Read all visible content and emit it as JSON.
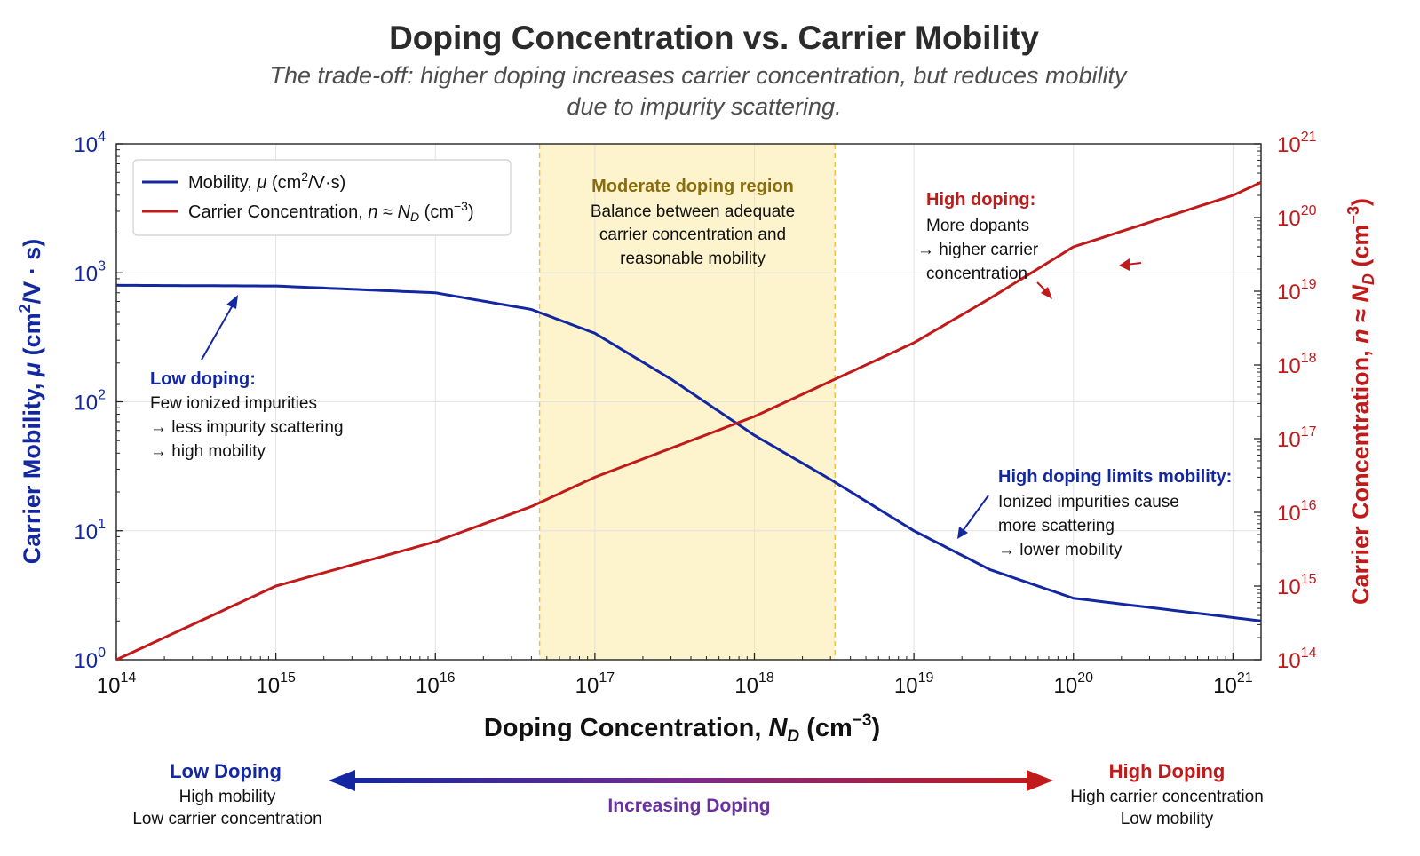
{
  "chart_data": {
    "type": "line",
    "title": "Doping Concentration vs. Carrier Mobility",
    "subtitle": "The trade-off: higher doping increases carrier concentration, but reduces mobility due to impurity scattering.",
    "xlabel": "Doping Concentration, N_D (cm^-3)",
    "ylabel_left": "Carrier Mobility, μ (cm²/V·s)",
    "ylabel_right": "Carrier Concentration, n ≈ N_D (cm^-3)",
    "x_scale": "log",
    "y_scale_left": "log",
    "y_scale_right": "log",
    "xlim": [
      100000000000000.0,
      1.5e+21
    ],
    "ylim_left": [
      1,
      10000
    ],
    "ylim_right": [
      100000000000000.0,
      1e+21
    ],
    "x_ticks": [
      "10^14",
      "10^15",
      "10^16",
      "10^17",
      "10^18",
      "10^19",
      "10^20",
      "10^21"
    ],
    "y_ticks_left": [
      "10^0",
      "10^1",
      "10^2",
      "10^3",
      "10^4"
    ],
    "y_ticks_right": [
      "10^14",
      "10^15",
      "10^16",
      "10^17",
      "10^18",
      "10^19",
      "10^20",
      "10^21"
    ],
    "grid": true,
    "legend_position": "top-left",
    "series": [
      {
        "name": "Mobility, μ (cm²/V·s)",
        "axis": "left",
        "color": "#1328a0",
        "x": [
          100000000000000.0,
          1000000000000000.0,
          1e+16,
          4e+16,
          1e+17,
          3e+17,
          1e+18,
          3e+18,
          1e+19,
          3e+19,
          1e+20,
          1.5e+21
        ],
        "y": [
          800,
          790,
          700,
          520,
          340,
          150,
          55,
          25,
          10,
          5,
          3,
          2
        ]
      },
      {
        "name": "Carrier Concentration, n ≈ N_D (cm⁻³)",
        "axis": "right",
        "color": "#c11a1a",
        "x": [
          100000000000000.0,
          1000000000000000.0,
          1e+16,
          4e+16,
          1e+17,
          1e+18,
          3e+18,
          1e+19,
          3e+19,
          1e+20,
          1e+21,
          1.5e+21
        ],
        "y": [
          100000000000000.0,
          1000000000000000.0,
          4000000000000000.0,
          1.2e+16,
          3e+16,
          2e+17,
          6e+17,
          2e+18,
          8e+18,
          4e+19,
          2e+20,
          3e+20
        ]
      }
    ],
    "shaded_region": {
      "label": "Moderate doping region",
      "x_from": 4.5e+16,
      "x_to": 3.2e+18,
      "color": "#fdf3cc"
    }
  },
  "legend": {
    "mobility_prefix": "Mobility, ",
    "mobility_mu": "μ",
    "mobility_unit_open": " (cm",
    "mobility_unit_exp": "2",
    "mobility_unit_close": "/V·s)",
    "conc_prefix": "Carrier Concentration, ",
    "conc_n": "n",
    "conc_approx": " ≈ ",
    "conc_N": "N",
    "conc_D": "D",
    "conc_unit_open": " (cm",
    "conc_unit_exp": "−3",
    "conc_unit_close": ")"
  },
  "axes": {
    "x_label_prefix": "Doping Concentration, ",
    "x_label_N": "N",
    "x_label_D": "D",
    "x_label_unit_open": " (cm",
    "x_label_unit_exp": "−3",
    "x_label_unit_close": ")",
    "yl_label_prefix": "Carrier Mobility, ",
    "yl_label_mu": "μ",
    "yl_label_unit_open": " (cm",
    "yl_label_unit_exp": "2",
    "yl_label_unit_close": "/V · s)",
    "yr_label_prefix": "Carrier Concentration, ",
    "yr_label_n": "n",
    "yr_label_approx": " ≈ ",
    "yr_label_N": "N",
    "yr_label_D": "D",
    "yr_label_unit_open": " (cm",
    "yr_label_unit_exp": "−3",
    "yr_label_unit_close": ")"
  },
  "annotations": {
    "moderate_title": "Moderate doping region",
    "moderate_line1": "Balance between adequate",
    "moderate_line2": "carrier concentration and",
    "moderate_line3": "reasonable mobility",
    "low_title": "Low doping:",
    "low_line1": "Few ionized impurities",
    "low_line2": "→ less impurity scattering",
    "low_line3": "→ high mobility",
    "high_title": "High doping:",
    "high_line1": "More dopants",
    "high_line2": "→ higher carrier",
    "high_line3": "concentration",
    "limits_title": "High doping limits mobility:",
    "limits_line1": "Ionized impurities cause",
    "limits_line2": "more scattering",
    "limits_line3": "→ lower mobility"
  },
  "bottom": {
    "left_title": "Low Doping",
    "left_line1": "High mobility",
    "left_line2": "Low carrier concentration",
    "center": "Increasing Doping",
    "right_title": "High Doping",
    "right_line1": "High carrier concentration",
    "right_line2": "Low mobility"
  },
  "colors": {
    "mobility": "#1328a0",
    "concentration": "#c11a1a",
    "region_fill": "#fdf3cc",
    "region_border": "#f0c040"
  }
}
